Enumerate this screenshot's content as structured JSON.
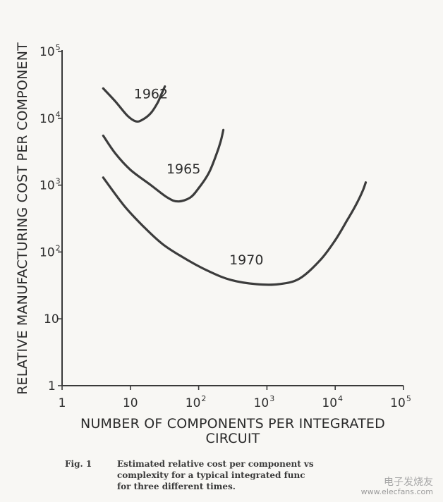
{
  "chart_data": {
    "type": "line",
    "title": "",
    "xlabel": "NUMBER OF COMPONENTS PER INTEGRATED CIRCUIT",
    "ylabel": "RELATIVE MANUFACTURING COST PER COMPONENT",
    "xscale": "log",
    "yscale": "log",
    "xlim": [
      1,
      100000
    ],
    "ylim": [
      1,
      100000
    ],
    "grid": false,
    "x_ticks": [
      {
        "value": 1,
        "base": "1",
        "exp": ""
      },
      {
        "value": 10,
        "base": "10",
        "exp": ""
      },
      {
        "value": 100,
        "base": "10",
        "exp": "2"
      },
      {
        "value": 1000,
        "base": "10",
        "exp": "3"
      },
      {
        "value": 10000,
        "base": "10",
        "exp": "4"
      },
      {
        "value": 100000,
        "base": "10",
        "exp": "5"
      }
    ],
    "y_ticks": [
      {
        "value": 1,
        "base": "1",
        "exp": ""
      },
      {
        "value": 10,
        "base": "10",
        "exp": ""
      },
      {
        "value": 100,
        "base": "10",
        "exp": "2"
      },
      {
        "value": 1000,
        "base": "10",
        "exp": "3"
      },
      {
        "value": 10000,
        "base": "10",
        "exp": "4"
      },
      {
        "value": 100000,
        "base": "10",
        "exp": "5"
      }
    ],
    "series": [
      {
        "name": "1962",
        "label_at": [
          20,
          20000
        ],
        "points": [
          [
            4,
            28000
          ],
          [
            6,
            18000
          ],
          [
            9,
            11000
          ],
          [
            12,
            9000
          ],
          [
            15,
            9500
          ],
          [
            20,
            12000
          ],
          [
            25,
            17000
          ],
          [
            28,
            22000
          ],
          [
            32,
            30000
          ]
        ]
      },
      {
        "name": "1965",
        "label_at": [
          60,
          1500
        ],
        "points": [
          [
            4,
            5500
          ],
          [
            6,
            3000
          ],
          [
            10,
            1700
          ],
          [
            20,
            1000
          ],
          [
            35,
            650
          ],
          [
            50,
            570
          ],
          [
            75,
            650
          ],
          [
            100,
            900
          ],
          [
            140,
            1500
          ],
          [
            180,
            2800
          ],
          [
            210,
            4500
          ],
          [
            230,
            6700
          ]
        ]
      },
      {
        "name": "1970",
        "label_at": [
          500,
          65
        ],
        "points": [
          [
            4,
            1300
          ],
          [
            8,
            500
          ],
          [
            15,
            250
          ],
          [
            30,
            130
          ],
          [
            70,
            75
          ],
          [
            150,
            50
          ],
          [
            300,
            38
          ],
          [
            700,
            33
          ],
          [
            1500,
            33
          ],
          [
            3000,
            40
          ],
          [
            6000,
            75
          ],
          [
            10000,
            150
          ],
          [
            15000,
            300
          ],
          [
            20000,
            500
          ],
          [
            25000,
            800
          ],
          [
            28000,
            1100
          ]
        ]
      }
    ]
  },
  "caption": {
    "fig": "Fig. 1",
    "text": "Estimated relative cost per component vs\ncomplexity for a typical integrated func\nfor three different times."
  },
  "watermark": {
    "cn": "电子发烧友",
    "url": "www.elecfans.com"
  },
  "colors": {
    "line": "#3c3c3c",
    "axis": "#3a3a3a",
    "paper": "#f8f7f4"
  }
}
